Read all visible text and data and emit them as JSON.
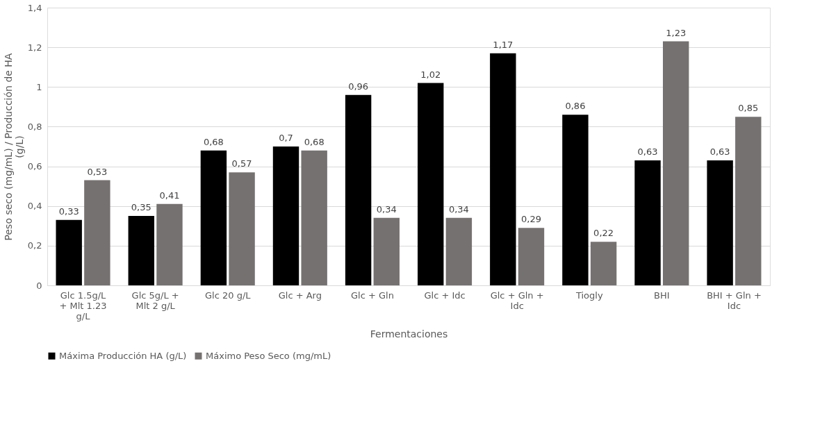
{
  "chart_data": {
    "type": "bar",
    "categories": [
      "Glc 1.5g/L + Mlt 1.23 g/L",
      "Glc  5g/L + Mlt 2 g/L",
      "Glc 20 g/L",
      "Glc + Arg",
      "Glc + Gln",
      "Glc + Idc",
      "Glc + Gln + Idc",
      "Tiogly",
      "BHI",
      "BHI + Gln + Idc"
    ],
    "xlabel": "Fermentaciones",
    "ylabel": "Peso seco (mg/mL) / Producción de HA (g/L)",
    "series": [
      {
        "name": "Máxima Producción HA (g/L)",
        "color": "#000000",
        "values": [
          0.33,
          0.35,
          0.68,
          0.7,
          0.96,
          1.02,
          1.17,
          0.86,
          0.63,
          0.63
        ],
        "value_labels": [
          "0,33",
          "0,35",
          "0,68",
          "0,7",
          "0,96",
          "1,02",
          "1,17",
          "0,86",
          "0,63",
          "0,63"
        ]
      },
      {
        "name": "Máximo Peso Seco (mg/mL)",
        "color": "#767171",
        "values": [
          0.53,
          0.41,
          0.57,
          0.68,
          0.34,
          0.34,
          0.29,
          0.22,
          1.23,
          0.85
        ],
        "value_labels": [
          "0,53",
          "0,41",
          "0,57",
          "0,68",
          "0,34",
          "0,34",
          "0,29",
          "0,22",
          "1,23",
          "0,85"
        ]
      }
    ],
    "ylim": [
      0,
      1.4
    ],
    "yticks": [
      0,
      {
        "value": 0.2,
        "label": "0,2"
      },
      {
        "value": 0.4,
        "label": "0,4"
      },
      {
        "value": 0.6,
        "label": "0,6"
      },
      {
        "value": 0.8,
        "label": "0,8"
      },
      1,
      {
        "value": 1.2,
        "label": "1,2"
      },
      {
        "value": 1.4,
        "label": "1,4"
      }
    ],
    "grid": "y",
    "legend": "bottom"
  }
}
